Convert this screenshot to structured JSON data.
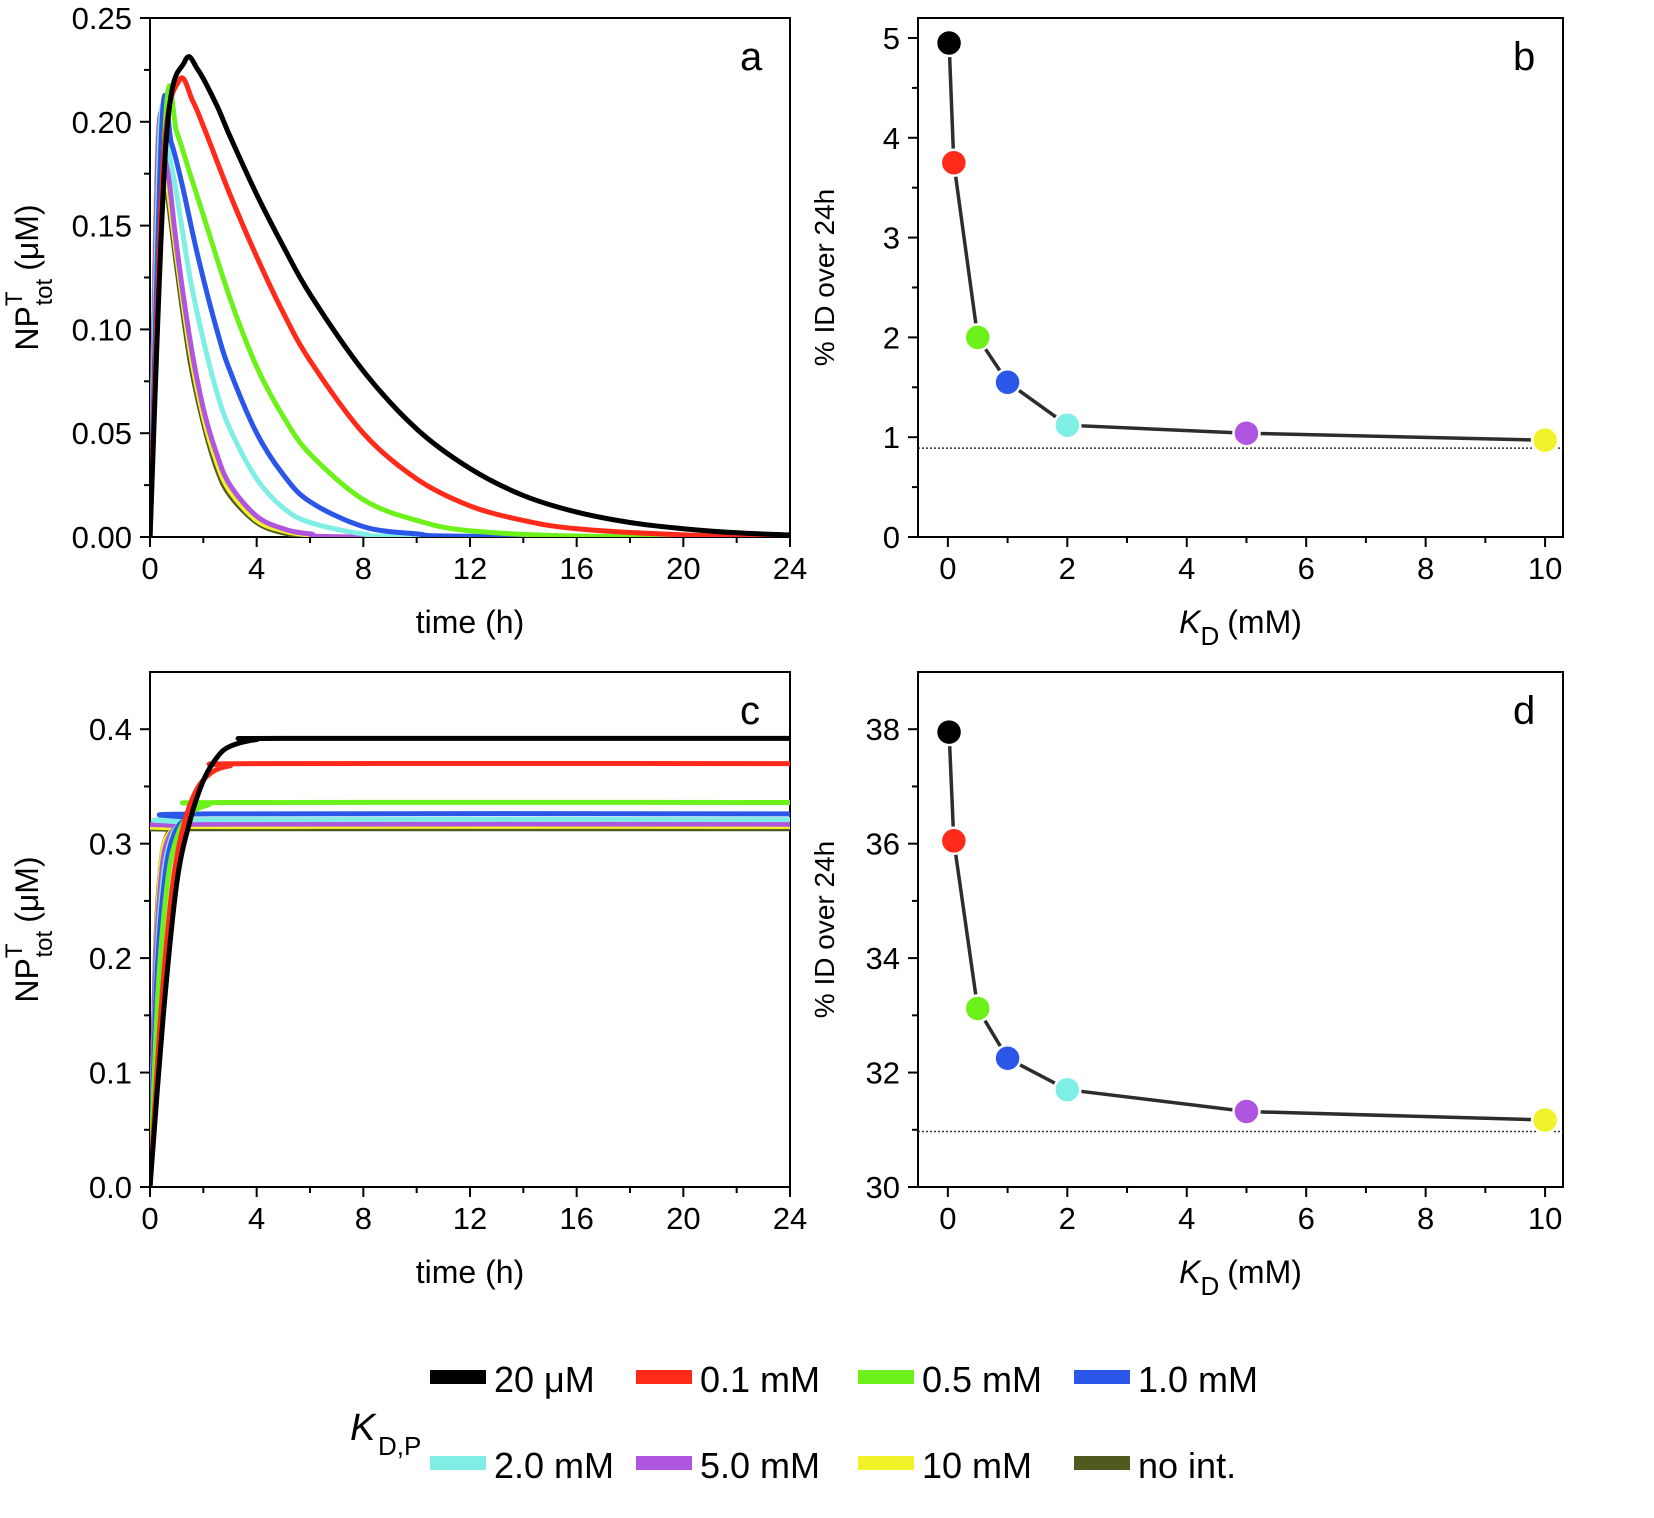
{
  "legend": {
    "title_main": "K",
    "title_sub": "D,P",
    "entries": [
      {
        "label": "20 μM",
        "color": "#000000"
      },
      {
        "label": "0.1 mM",
        "color": "#ff2a1a"
      },
      {
        "label": "0.5 mM",
        "color": "#6cf21a"
      },
      {
        "label": "1.0 mM",
        "color": "#2a57e8"
      },
      {
        "label": "2.0 mM",
        "color": "#7fefe6"
      },
      {
        "label": "5.0 mM",
        "color": "#b055e0"
      },
      {
        "label": "10 mM",
        "color": "#f2f22a"
      },
      {
        "label": "no int.",
        "color": "#4f5a1e"
      }
    ]
  },
  "chart_data": [
    {
      "panel": "a",
      "type": "line",
      "xlabel": "time (h)",
      "ylabel_main": "NP",
      "ylabel_sup": "T",
      "ylabel_sub": "tot",
      "ylabel_unit": "(μM)",
      "xlim": [
        0,
        24
      ],
      "ylim": [
        0,
        0.25
      ],
      "xticks": [
        "0",
        "4",
        "8",
        "12",
        "16",
        "20",
        "24"
      ],
      "yticks": [
        "0.00",
        "0.05",
        "0.10",
        "0.15",
        "0.20",
        "0.25"
      ],
      "series": [
        {
          "color": "#4f5a1e",
          "points": [
            [
              0,
              0
            ],
            [
              0.3,
              0.19
            ],
            [
              0.6,
              0.17
            ],
            [
              1,
              0.13
            ],
            [
              1.5,
              0.085
            ],
            [
              2,
              0.055
            ],
            [
              2.5,
              0.033
            ],
            [
              3,
              0.02
            ],
            [
              4,
              0.007
            ],
            [
              5,
              0.002
            ],
            [
              6,
              0.0005
            ],
            [
              8,
              0
            ],
            [
              24,
              0
            ]
          ]
        },
        {
          "color": "#f2f22a",
          "points": [
            [
              0,
              0
            ],
            [
              0.3,
              0.192
            ],
            [
              0.6,
              0.175
            ],
            [
              1,
              0.135
            ],
            [
              1.5,
              0.09
            ],
            [
              2,
              0.058
            ],
            [
              2.5,
              0.036
            ],
            [
              3,
              0.022
            ],
            [
              4,
              0.008
            ],
            [
              5,
              0.003
            ],
            [
              6,
              0.001
            ],
            [
              8,
              0
            ],
            [
              24,
              0
            ]
          ]
        },
        {
          "color": "#b055e0",
          "points": [
            [
              0,
              0
            ],
            [
              0.32,
              0.193
            ],
            [
              0.65,
              0.178
            ],
            [
              1,
              0.14
            ],
            [
              1.5,
              0.095
            ],
            [
              2,
              0.062
            ],
            [
              2.5,
              0.04
            ],
            [
              3,
              0.025
            ],
            [
              4,
              0.01
            ],
            [
              5,
              0.004
            ],
            [
              6,
              0.0015
            ],
            [
              8,
              0
            ],
            [
              24,
              0
            ]
          ]
        },
        {
          "color": "#7fefe6",
          "points": [
            [
              0,
              0
            ],
            [
              0.38,
              0.196
            ],
            [
              0.7,
              0.185
            ],
            [
              1,
              0.165
            ],
            [
              1.5,
              0.125
            ],
            [
              2,
              0.095
            ],
            [
              2.5,
              0.07
            ],
            [
              3,
              0.052
            ],
            [
              4,
              0.028
            ],
            [
              5,
              0.014
            ],
            [
              6,
              0.007
            ],
            [
              8,
              0.0015
            ],
            [
              10,
              0.0003
            ],
            [
              24,
              0
            ]
          ]
        },
        {
          "color": "#2a57e8",
          "points": [
            [
              0,
              0
            ],
            [
              0.45,
              0.2
            ],
            [
              0.8,
              0.19
            ],
            [
              1.2,
              0.17
            ],
            [
              1.8,
              0.135
            ],
            [
              2.5,
              0.1
            ],
            [
              3,
              0.08
            ],
            [
              4,
              0.05
            ],
            [
              5,
              0.03
            ],
            [
              6,
              0.017
            ],
            [
              8,
              0.005
            ],
            [
              10,
              0.0015
            ],
            [
              12,
              0.0004
            ],
            [
              24,
              0
            ]
          ]
        },
        {
          "color": "#6cf21a",
          "points": [
            [
              0,
              0
            ],
            [
              0.6,
              0.204
            ],
            [
              1,
              0.195
            ],
            [
              1.5,
              0.175
            ],
            [
              2,
              0.155
            ],
            [
              3,
              0.115
            ],
            [
              4,
              0.082
            ],
            [
              5,
              0.058
            ],
            [
              6,
              0.04
            ],
            [
              8,
              0.018
            ],
            [
              10,
              0.008
            ],
            [
              12,
              0.003
            ],
            [
              16,
              0.0005
            ],
            [
              24,
              0
            ]
          ]
        },
        {
          "color": "#ff2a1a",
          "points": [
            [
              0,
              0
            ],
            [
              0.5,
              0.18
            ],
            [
              1.1,
              0.22
            ],
            [
              1.6,
              0.21
            ],
            [
              2,
              0.198
            ],
            [
              3,
              0.165
            ],
            [
              4,
              0.135
            ],
            [
              5,
              0.108
            ],
            [
              6,
              0.085
            ],
            [
              8,
              0.05
            ],
            [
              10,
              0.028
            ],
            [
              12,
              0.015
            ],
            [
              14,
              0.008
            ],
            [
              16,
              0.004
            ],
            [
              20,
              0.001
            ],
            [
              24,
              0
            ]
          ]
        },
        {
          "color": "#000000",
          "points": [
            [
              0,
              0
            ],
            [
              0.6,
              0.19
            ],
            [
              1.3,
              0.229
            ],
            [
              1.8,
              0.225
            ],
            [
              2.5,
              0.208
            ],
            [
              3,
              0.193
            ],
            [
              4,
              0.165
            ],
            [
              5,
              0.14
            ],
            [
              6,
              0.117
            ],
            [
              8,
              0.08
            ],
            [
              10,
              0.052
            ],
            [
              12,
              0.033
            ],
            [
              14,
              0.02
            ],
            [
              16,
              0.012
            ],
            [
              18,
              0.007
            ],
            [
              20,
              0.004
            ],
            [
              22,
              0.002
            ],
            [
              24,
              0.001
            ]
          ]
        }
      ],
      "panel_label": "a"
    },
    {
      "panel": "b",
      "type": "scatter",
      "xlabel_main": "K",
      "xlabel_sub": "D",
      "xlabel_unit": "(mM)",
      "ylabel": "% ID over 24h",
      "xlim": [
        -0.5,
        10.3
      ],
      "ylim": [
        0,
        5.2
      ],
      "xticks": [
        "0",
        "2",
        "4",
        "6",
        "8",
        "10"
      ],
      "yticks": [
        "0",
        "1",
        "2",
        "3",
        "4",
        "5"
      ],
      "reference_line": 0.89,
      "points": [
        {
          "x": 0.02,
          "y": 4.95,
          "color": "#000000"
        },
        {
          "x": 0.1,
          "y": 3.75,
          "color": "#ff2a1a"
        },
        {
          "x": 0.5,
          "y": 2.0,
          "color": "#6cf21a"
        },
        {
          "x": 1.0,
          "y": 1.55,
          "color": "#2a57e8"
        },
        {
          "x": 2.0,
          "y": 1.12,
          "color": "#7fefe6"
        },
        {
          "x": 5.0,
          "y": 1.04,
          "color": "#b055e0"
        },
        {
          "x": 10.0,
          "y": 0.97,
          "color": "#f2f22a"
        }
      ],
      "panel_label": "b"
    },
    {
      "panel": "c",
      "type": "line",
      "xlabel": "time (h)",
      "ylabel_main": "NP",
      "ylabel_sup": "T",
      "ylabel_sub": "tot",
      "ylabel_unit": "(μM)",
      "xlim": [
        0,
        24
      ],
      "ylim": [
        0,
        0.45
      ],
      "xticks": [
        "0",
        "4",
        "8",
        "12",
        "16",
        "20",
        "24"
      ],
      "yticks": [
        "0.0",
        "0.1",
        "0.2",
        "0.3",
        "0.4"
      ],
      "series": [
        {
          "color": "#4f5a1e",
          "points": [
            [
              0,
              0
            ],
            [
              0.2,
              0.2
            ],
            [
              0.4,
              0.28
            ],
            [
              0.6,
              0.305
            ],
            [
              0.9,
              0.312
            ],
            [
              1.5,
              0.313
            ],
            [
              24,
              0.313
            ]
          ]
        },
        {
          "color": "#f2f22a",
          "points": [
            [
              0,
              0
            ],
            [
              0.2,
              0.195
            ],
            [
              0.4,
              0.278
            ],
            [
              0.6,
              0.304
            ],
            [
              1,
              0.313
            ],
            [
              1.6,
              0.315
            ],
            [
              24,
              0.315
            ]
          ]
        },
        {
          "color": "#b055e0",
          "points": [
            [
              0,
              0
            ],
            [
              0.2,
              0.19
            ],
            [
              0.45,
              0.278
            ],
            [
              0.7,
              0.305
            ],
            [
              1.1,
              0.315
            ],
            [
              1.8,
              0.317
            ],
            [
              24,
              0.317
            ]
          ]
        },
        {
          "color": "#7fefe6",
          "points": [
            [
              0,
              0
            ],
            [
              0.25,
              0.19
            ],
            [
              0.5,
              0.27
            ],
            [
              0.8,
              0.305
            ],
            [
              1.2,
              0.318
            ],
            [
              2,
              0.321
            ],
            [
              24,
              0.321
            ]
          ]
        },
        {
          "color": "#2a57e8",
          "points": [
            [
              0,
              0
            ],
            [
              0.25,
              0.18
            ],
            [
              0.55,
              0.27
            ],
            [
              0.9,
              0.308
            ],
            [
              1.4,
              0.322
            ],
            [
              2.2,
              0.326
            ],
            [
              24,
              0.326
            ]
          ]
        },
        {
          "color": "#6cf21a",
          "points": [
            [
              0,
              0
            ],
            [
              0.3,
              0.17
            ],
            [
              0.65,
              0.265
            ],
            [
              1,
              0.305
            ],
            [
              1.5,
              0.326
            ],
            [
              2.2,
              0.334
            ],
            [
              3,
              0.336
            ],
            [
              24,
              0.336
            ]
          ]
        },
        {
          "color": "#ff2a1a",
          "points": [
            [
              0,
              0
            ],
            [
              0.4,
              0.15
            ],
            [
              0.8,
              0.255
            ],
            [
              1.2,
              0.31
            ],
            [
              1.7,
              0.345
            ],
            [
              2.3,
              0.362
            ],
            [
              3,
              0.368
            ],
            [
              4,
              0.37
            ],
            [
              24,
              0.37
            ]
          ]
        },
        {
          "color": "#000000",
          "points": [
            [
              0,
              0
            ],
            [
              0.5,
              0.15
            ],
            [
              1,
              0.265
            ],
            [
              1.5,
              0.32
            ],
            [
              2,
              0.355
            ],
            [
              2.5,
              0.375
            ],
            [
              3,
              0.385
            ],
            [
              4,
              0.391
            ],
            [
              5,
              0.392
            ],
            [
              24,
              0.392
            ]
          ]
        }
      ],
      "panel_label": "c"
    },
    {
      "panel": "d",
      "type": "scatter",
      "xlabel_main": "K",
      "xlabel_sub": "D",
      "xlabel_unit": "(mM)",
      "ylabel": "% ID over 24h",
      "xlim": [
        -0.5,
        10.3
      ],
      "ylim": [
        30,
        39
      ],
      "xticks": [
        "0",
        "2",
        "4",
        "6",
        "8",
        "10"
      ],
      "yticks": [
        "30",
        "32",
        "34",
        "36",
        "38"
      ],
      "reference_line": 30.97,
      "points": [
        {
          "x": 0.02,
          "y": 37.95,
          "color": "#000000"
        },
        {
          "x": 0.1,
          "y": 36.05,
          "color": "#ff2a1a"
        },
        {
          "x": 0.5,
          "y": 33.12,
          "color": "#6cf21a"
        },
        {
          "x": 1.0,
          "y": 32.25,
          "color": "#2a57e8"
        },
        {
          "x": 2.0,
          "y": 31.7,
          "color": "#7fefe6"
        },
        {
          "x": 5.0,
          "y": 31.32,
          "color": "#b055e0"
        },
        {
          "x": 10.0,
          "y": 31.17,
          "color": "#f2f22a"
        }
      ],
      "panel_label": "d"
    }
  ]
}
